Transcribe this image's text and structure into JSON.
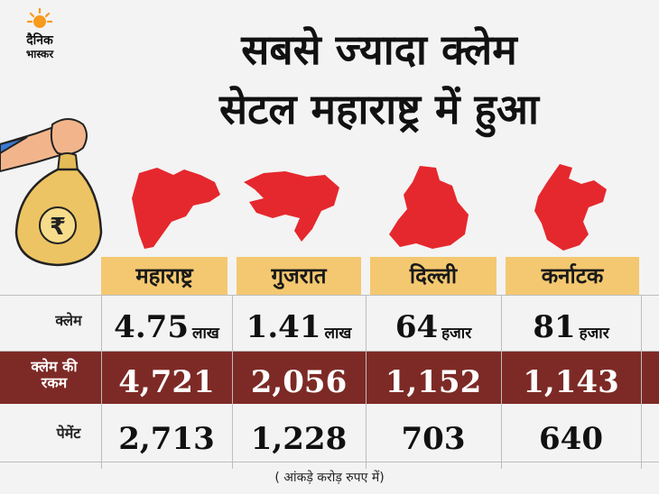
{
  "brand": {
    "logo_line1": "दैनिक",
    "logo_line2": "भास्कर"
  },
  "headline": {
    "line1": "सबसे ज्यादा क्लेम",
    "line2": "सेटल महाराष्ट्र में हुआ"
  },
  "colors": {
    "accent": "#f4c870",
    "band": "#7d2a26",
    "map": "#e5282d"
  },
  "bag_symbol": "₹",
  "table": {
    "columns": [
      "महाराष्ट्र",
      "गुजरात",
      "दिल्ली",
      "कर्नाटक"
    ],
    "rows": [
      {
        "label": "क्लेम",
        "values": [
          {
            "value": "4.75",
            "unit": "लाख"
          },
          {
            "value": "1.41",
            "unit": "लाख"
          },
          {
            "value": "64",
            "unit": "हजार"
          },
          {
            "value": "81",
            "unit": "हजार"
          }
        ]
      },
      {
        "label_line1": "क्लेम की",
        "label_line2": "रकम",
        "values": [
          {
            "value": "4,721"
          },
          {
            "value": "2,056"
          },
          {
            "value": "1,152"
          },
          {
            "value": "1,143"
          }
        ]
      },
      {
        "label": "पेमेंट",
        "values": [
          {
            "value": "2,713"
          },
          {
            "value": "1,228"
          },
          {
            "value": "703"
          },
          {
            "value": "640"
          }
        ]
      }
    ]
  },
  "footnote": "( आंकड़े करोड़ रुपए में)"
}
